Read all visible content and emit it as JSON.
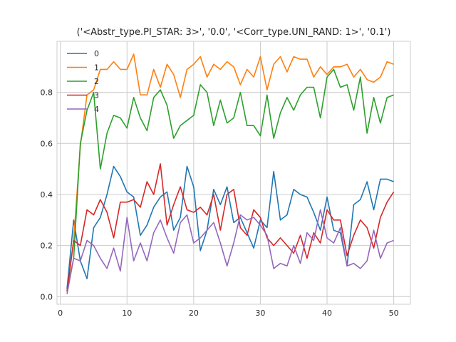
{
  "chart_data": {
    "type": "line",
    "title": "('<Abstr_type.PI_STAR: 3>', '0.0', '<Corr_type.UNI_RAND: 1>', '0.1')",
    "xlabel": "",
    "ylabel": "",
    "xlim": [
      -0.5,
      52.5
    ],
    "ylim": [
      -0.03,
      1.0
    ],
    "xticks": [
      0,
      10,
      20,
      30,
      40,
      50
    ],
    "yticks": [
      0.0,
      0.2,
      0.4,
      0.6,
      0.8
    ],
    "grid": true,
    "legend": "top-left",
    "x": [
      1,
      2,
      3,
      4,
      5,
      6,
      7,
      8,
      9,
      10,
      11,
      12,
      13,
      14,
      15,
      16,
      17,
      18,
      19,
      20,
      21,
      22,
      23,
      24,
      25,
      26,
      27,
      28,
      29,
      30,
      31,
      32,
      33,
      34,
      35,
      36,
      37,
      38,
      39,
      40,
      41,
      42,
      43,
      44,
      45,
      46,
      47,
      48,
      49,
      50
    ],
    "series": [
      {
        "name": "0",
        "color": "#1f77b4",
        "values": [
          0.03,
          0.3,
          0.14,
          0.07,
          0.27,
          0.31,
          0.4,
          0.51,
          0.47,
          0.41,
          0.39,
          0.24,
          0.28,
          0.35,
          0.39,
          0.41,
          0.26,
          0.31,
          0.51,
          0.43,
          0.18,
          0.26,
          0.42,
          0.36,
          0.43,
          0.29,
          0.31,
          0.25,
          0.19,
          0.3,
          0.27,
          0.49,
          0.3,
          0.32,
          0.42,
          0.4,
          0.39,
          0.33,
          0.26,
          0.39,
          0.26,
          0.25,
          0.12,
          0.36,
          0.38,
          0.45,
          0.34,
          0.46,
          0.46,
          0.45
        ]
      },
      {
        "name": "1",
        "color": "#ff7f0e",
        "values": [
          0.02,
          0.22,
          0.59,
          0.79,
          0.81,
          0.89,
          0.89,
          0.92,
          0.89,
          0.89,
          0.95,
          0.79,
          0.79,
          0.89,
          0.82,
          0.91,
          0.87,
          0.78,
          0.89,
          0.91,
          0.94,
          0.86,
          0.91,
          0.89,
          0.92,
          0.9,
          0.83,
          0.89,
          0.86,
          0.94,
          0.81,
          0.91,
          0.94,
          0.88,
          0.94,
          0.93,
          0.93,
          0.86,
          0.9,
          0.87,
          0.9,
          0.9,
          0.91,
          0.86,
          0.89,
          0.85,
          0.84,
          0.86,
          0.92,
          0.91
        ]
      },
      {
        "name": "2",
        "color": "#2ca02c",
        "values": [
          0.02,
          0.15,
          0.6,
          0.73,
          0.8,
          0.5,
          0.64,
          0.71,
          0.7,
          0.66,
          0.78,
          0.7,
          0.65,
          0.78,
          0.81,
          0.75,
          0.62,
          0.67,
          0.69,
          0.71,
          0.83,
          0.8,
          0.67,
          0.77,
          0.68,
          0.7,
          0.8,
          0.67,
          0.67,
          0.63,
          0.79,
          0.62,
          0.72,
          0.78,
          0.73,
          0.79,
          0.82,
          0.82,
          0.7,
          0.86,
          0.89,
          0.82,
          0.83,
          0.73,
          0.86,
          0.64,
          0.78,
          0.68,
          0.78,
          0.79
        ]
      },
      {
        "name": "3",
        "color": "#d62728",
        "values": [
          0.02,
          0.22,
          0.2,
          0.34,
          0.32,
          0.38,
          0.33,
          0.23,
          0.37,
          0.37,
          0.38,
          0.35,
          0.45,
          0.4,
          0.52,
          0.28,
          0.36,
          0.43,
          0.34,
          0.33,
          0.35,
          0.32,
          0.4,
          0.26,
          0.4,
          0.42,
          0.27,
          0.24,
          0.34,
          0.31,
          0.23,
          0.2,
          0.23,
          0.2,
          0.17,
          0.24,
          0.15,
          0.25,
          0.21,
          0.34,
          0.3,
          0.3,
          0.16,
          0.24,
          0.3,
          0.27,
          0.19,
          0.31,
          0.37,
          0.41
        ]
      },
      {
        "name": "4",
        "color": "#9467bd",
        "values": [
          0.01,
          0.15,
          0.14,
          0.22,
          0.2,
          0.15,
          0.11,
          0.19,
          0.1,
          0.31,
          0.14,
          0.21,
          0.14,
          0.25,
          0.3,
          0.23,
          0.17,
          0.29,
          0.32,
          0.21,
          0.23,
          0.26,
          0.29,
          0.21,
          0.12,
          0.21,
          0.32,
          0.3,
          0.31,
          0.28,
          0.24,
          0.11,
          0.13,
          0.12,
          0.2,
          0.13,
          0.25,
          0.22,
          0.34,
          0.23,
          0.21,
          0.27,
          0.12,
          0.13,
          0.11,
          0.14,
          0.26,
          0.15,
          0.21,
          0.22
        ]
      }
    ]
  }
}
